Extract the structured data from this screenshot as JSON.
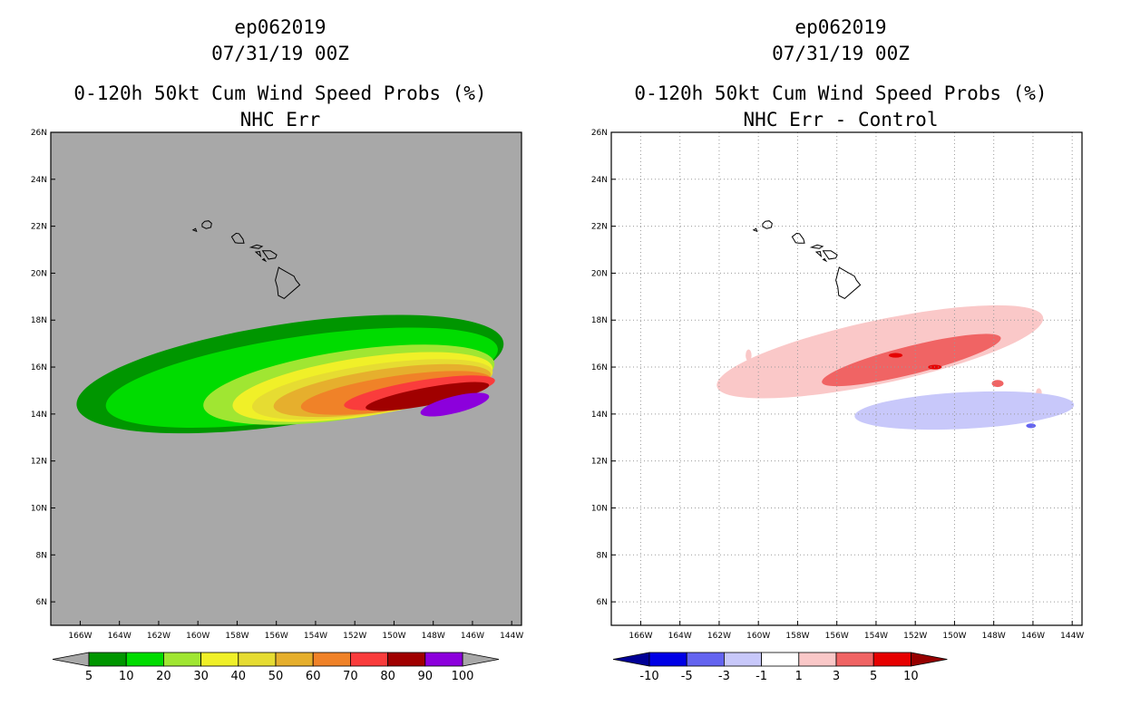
{
  "panels": [
    {
      "id": "left",
      "title_lines": [
        "ep062019",
        "07/31/19 00Z",
        "0-120h 50kt Cum Wind Speed Probs (%)",
        "NHC Err"
      ],
      "background": "#a8a8a8",
      "gridlines": false
    },
    {
      "id": "right",
      "title_lines": [
        "ep062019",
        "07/31/19 00Z",
        "0-120h 50kt Cum Wind Speed Probs (%)",
        "NHC Err - Control"
      ],
      "background": "#ffffff",
      "gridlines": true
    }
  ],
  "chart_data": [
    {
      "type": "heatmap",
      "subtype": "filled-contour-map",
      "title": "0-120h 50kt Cum Wind Speed Probs (%)",
      "subtitle": "NHC Err",
      "storm": "ep062019",
      "valid": "07/31/19 00Z",
      "lon_range": [
        -167.5,
        -143.5
      ],
      "lat_range": [
        5,
        26
      ],
      "x_ticks": [
        "166W",
        "164W",
        "162W",
        "160W",
        "158W",
        "156W",
        "154W",
        "152W",
        "150W",
        "148W",
        "146W",
        "144W"
      ],
      "x_tick_values": [
        -166,
        -164,
        -162,
        -160,
        -158,
        -156,
        -154,
        -152,
        -150,
        -148,
        -146,
        -144
      ],
      "y_ticks": [
        "6N",
        "8N",
        "10N",
        "12N",
        "14N",
        "16N",
        "18N",
        "20N",
        "22N",
        "24N",
        "26N"
      ],
      "y_tick_values": [
        6,
        8,
        10,
        12,
        14,
        16,
        18,
        20,
        22,
        24,
        26
      ],
      "colorbar": {
        "labels": [
          "5",
          "10",
          "20",
          "30",
          "40",
          "50",
          "60",
          "70",
          "80",
          "90",
          "100"
        ],
        "colors": [
          "#009600",
          "#00dc00",
          "#a0e632",
          "#f0f028",
          "#e6dc32",
          "#e6af2d",
          "#f08228",
          "#fa3c3c",
          "#a00000",
          "#8c00dc"
        ],
        "end_color": "#a8a8a8"
      },
      "contours": [
        {
          "level": 5,
          "color": "#009600",
          "center": [
            -155.3,
            15.7
          ],
          "semi_axes": [
            11.0,
            2.15
          ],
          "angle_deg": -8.5
        },
        {
          "level": 10,
          "color": "#00dc00",
          "center": [
            -154.7,
            15.55
          ],
          "semi_axes": [
            10.1,
            1.75
          ],
          "angle_deg": -8.5
        },
        {
          "level": 20,
          "color": "#a0e632",
          "center": [
            -152.3,
            15.25
          ],
          "semi_axes": [
            7.5,
            1.45
          ],
          "angle_deg": -8.5
        },
        {
          "level": 30,
          "color": "#f0f028",
          "center": [
            -151.6,
            15.15
          ],
          "semi_axes": [
            6.7,
            1.25
          ],
          "angle_deg": -8.5
        },
        {
          "level": 40,
          "color": "#e6dc32",
          "center": [
            -151.1,
            15.05
          ],
          "semi_axes": [
            6.2,
            1.05
          ],
          "angle_deg": -8.5
        },
        {
          "level": 50,
          "color": "#e6af2d",
          "center": [
            -150.6,
            15.0
          ],
          "semi_axes": [
            5.6,
            0.9
          ],
          "angle_deg": -8.5
        },
        {
          "level": 60,
          "color": "#f08228",
          "center": [
            -149.9,
            14.9
          ],
          "semi_axes": [
            4.9,
            0.72
          ],
          "angle_deg": -8.5
        },
        {
          "level": 70,
          "color": "#fa3c3c",
          "center": [
            -148.7,
            14.9
          ],
          "semi_axes": [
            3.9,
            0.52
          ],
          "angle_deg": -9.5
        },
        {
          "level": 80,
          "color": "#a00000",
          "center": [
            -148.3,
            14.75
          ],
          "semi_axes": [
            3.2,
            0.38
          ],
          "angle_deg": -10.5
        },
        {
          "level": 90,
          "color": "#8c00dc",
          "center": [
            -146.9,
            14.4
          ],
          "semi_axes": [
            1.8,
            0.36
          ],
          "angle_deg": -14
        }
      ]
    },
    {
      "type": "heatmap",
      "subtype": "filled-contour-map",
      "title": "0-120h 50kt Cum Wind Speed Probs (%)",
      "subtitle": "NHC Err - Control",
      "storm": "ep062019",
      "valid": "07/31/19 00Z",
      "lon_range": [
        -167.5,
        -143.5
      ],
      "lat_range": [
        5,
        26
      ],
      "x_ticks": [
        "166W",
        "164W",
        "162W",
        "160W",
        "158W",
        "156W",
        "154W",
        "152W",
        "150W",
        "148W",
        "146W",
        "144W"
      ],
      "x_tick_values": [
        -166,
        -164,
        -162,
        -160,
        -158,
        -156,
        -154,
        -152,
        -150,
        -148,
        -146,
        -144
      ],
      "y_ticks": [
        "6N",
        "8N",
        "10N",
        "12N",
        "14N",
        "16N",
        "18N",
        "20N",
        "22N",
        "24N",
        "26N"
      ],
      "y_tick_values": [
        6,
        8,
        10,
        12,
        14,
        16,
        18,
        20,
        22,
        24,
        26
      ],
      "colorbar": {
        "labels": [
          "-10",
          "-5",
          "-3",
          "-1",
          "1",
          "3",
          "5",
          "10"
        ],
        "colors": [
          "#0000e6",
          "#6464f0",
          "#c8c8fa",
          "#ffffff",
          "#fac8c8",
          "#f06464",
          "#e60000"
        ],
        "low_end_color": "#000096",
        "high_end_color": "#960000"
      },
      "contours": [
        {
          "level": 1,
          "color": "#fac8c8",
          "center": [
            -153.8,
            16.65
          ],
          "semi_axes": [
            8.5,
            1.35
          ],
          "angle_deg": -12
        },
        {
          "level": 1,
          "color": "#fac8c8",
          "center": [
            -160.5,
            16.5
          ],
          "semi_axes": [
            0.15,
            0.25
          ],
          "angle_deg": 0
        },
        {
          "level": 1,
          "color": "#fac8c8",
          "center": [
            -145.7,
            14.9
          ],
          "semi_axes": [
            0.15,
            0.2
          ],
          "angle_deg": 0
        },
        {
          "level": 3,
          "color": "#f06464",
          "center": [
            -152.2,
            16.3
          ],
          "semi_axes": [
            4.7,
            0.6
          ],
          "angle_deg": -14
        },
        {
          "level": 3,
          "color": "#f06464",
          "center": [
            -147.8,
            15.3
          ],
          "semi_axes": [
            0.3,
            0.15
          ],
          "angle_deg": 0
        },
        {
          "level": 5,
          "color": "#e60000",
          "center": [
            -153.0,
            16.5
          ],
          "semi_axes": [
            0.35,
            0.1
          ],
          "angle_deg": 0
        },
        {
          "level": 5,
          "color": "#e60000",
          "center": [
            -151.0,
            16.0
          ],
          "semi_axes": [
            0.35,
            0.1
          ],
          "angle_deg": 0
        },
        {
          "level": -1,
          "color": "#c8c8fa",
          "center": [
            -149.5,
            14.15
          ],
          "semi_axes": [
            5.6,
            0.78
          ],
          "angle_deg": -3
        },
        {
          "level": -3,
          "color": "#6464f0",
          "center": [
            -146.1,
            13.5
          ],
          "semi_axes": [
            0.25,
            0.1
          ],
          "angle_deg": 0
        }
      ]
    }
  ]
}
